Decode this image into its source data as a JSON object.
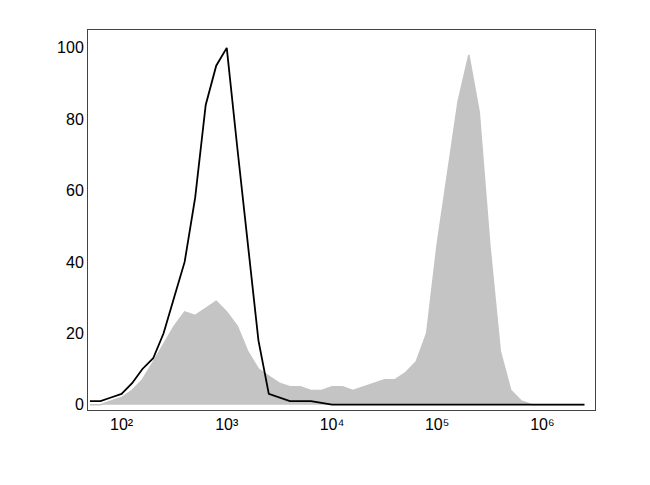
{
  "chart_data": {
    "type": "line",
    "log": "x",
    "grid": false,
    "xlim": [
      48,
      3162000
    ],
    "ylim": [
      -1.5,
      105
    ],
    "xticks": [
      {
        "value": 100,
        "label": "10²"
      },
      {
        "value": 1000,
        "label": "10³"
      },
      {
        "value": 10000,
        "label": "10⁴"
      },
      {
        "value": 100000,
        "label": "10⁵"
      },
      {
        "value": 1000000,
        "label": "10⁶"
      }
    ],
    "yticks": [
      0,
      20,
      40,
      60,
      80,
      100
    ],
    "x": [
      50.1,
      63.1,
      79.4,
      100,
      126,
      158,
      200,
      251,
      316,
      398,
      501,
      631,
      794,
      1000,
      1260,
      1580,
      2000,
      2510,
      3160,
      3980,
      5010,
      6310,
      7940,
      10000,
      12600,
      15800,
      19950,
      25100,
      31600,
      39800,
      50100,
      63100,
      79400,
      100000,
      126000,
      158000,
      200000,
      251000,
      316000,
      398000,
      501000,
      631000,
      794000,
      1000000,
      1260000,
      1580000,
      2000000,
      2510000
    ],
    "series": [
      {
        "type": "area",
        "color": "#c4c4c4",
        "values": [
          0,
          0,
          1,
          2,
          4,
          7,
          12,
          17,
          22,
          26,
          25,
          27,
          29,
          26,
          22,
          15,
          10,
          8,
          6,
          5,
          5,
          4,
          4,
          5,
          5,
          4,
          5,
          6,
          7,
          7,
          9,
          12,
          20,
          45,
          65,
          85,
          98,
          82,
          45,
          15,
          4,
          1,
          0,
          0,
          0,
          0,
          0,
          0
        ]
      },
      {
        "type": "line",
        "color": "#000000",
        "values": [
          1,
          1,
          2,
          3,
          6,
          10,
          13,
          20,
          30,
          40,
          58,
          84,
          95,
          100,
          72,
          45,
          18,
          3,
          2,
          1,
          1,
          1,
          0.5,
          0,
          0,
          0,
          0,
          0,
          0,
          0,
          0,
          0,
          0,
          0,
          0,
          0,
          0,
          0,
          0,
          0,
          0,
          0,
          0,
          0,
          0,
          0,
          0,
          0
        ]
      }
    ]
  }
}
